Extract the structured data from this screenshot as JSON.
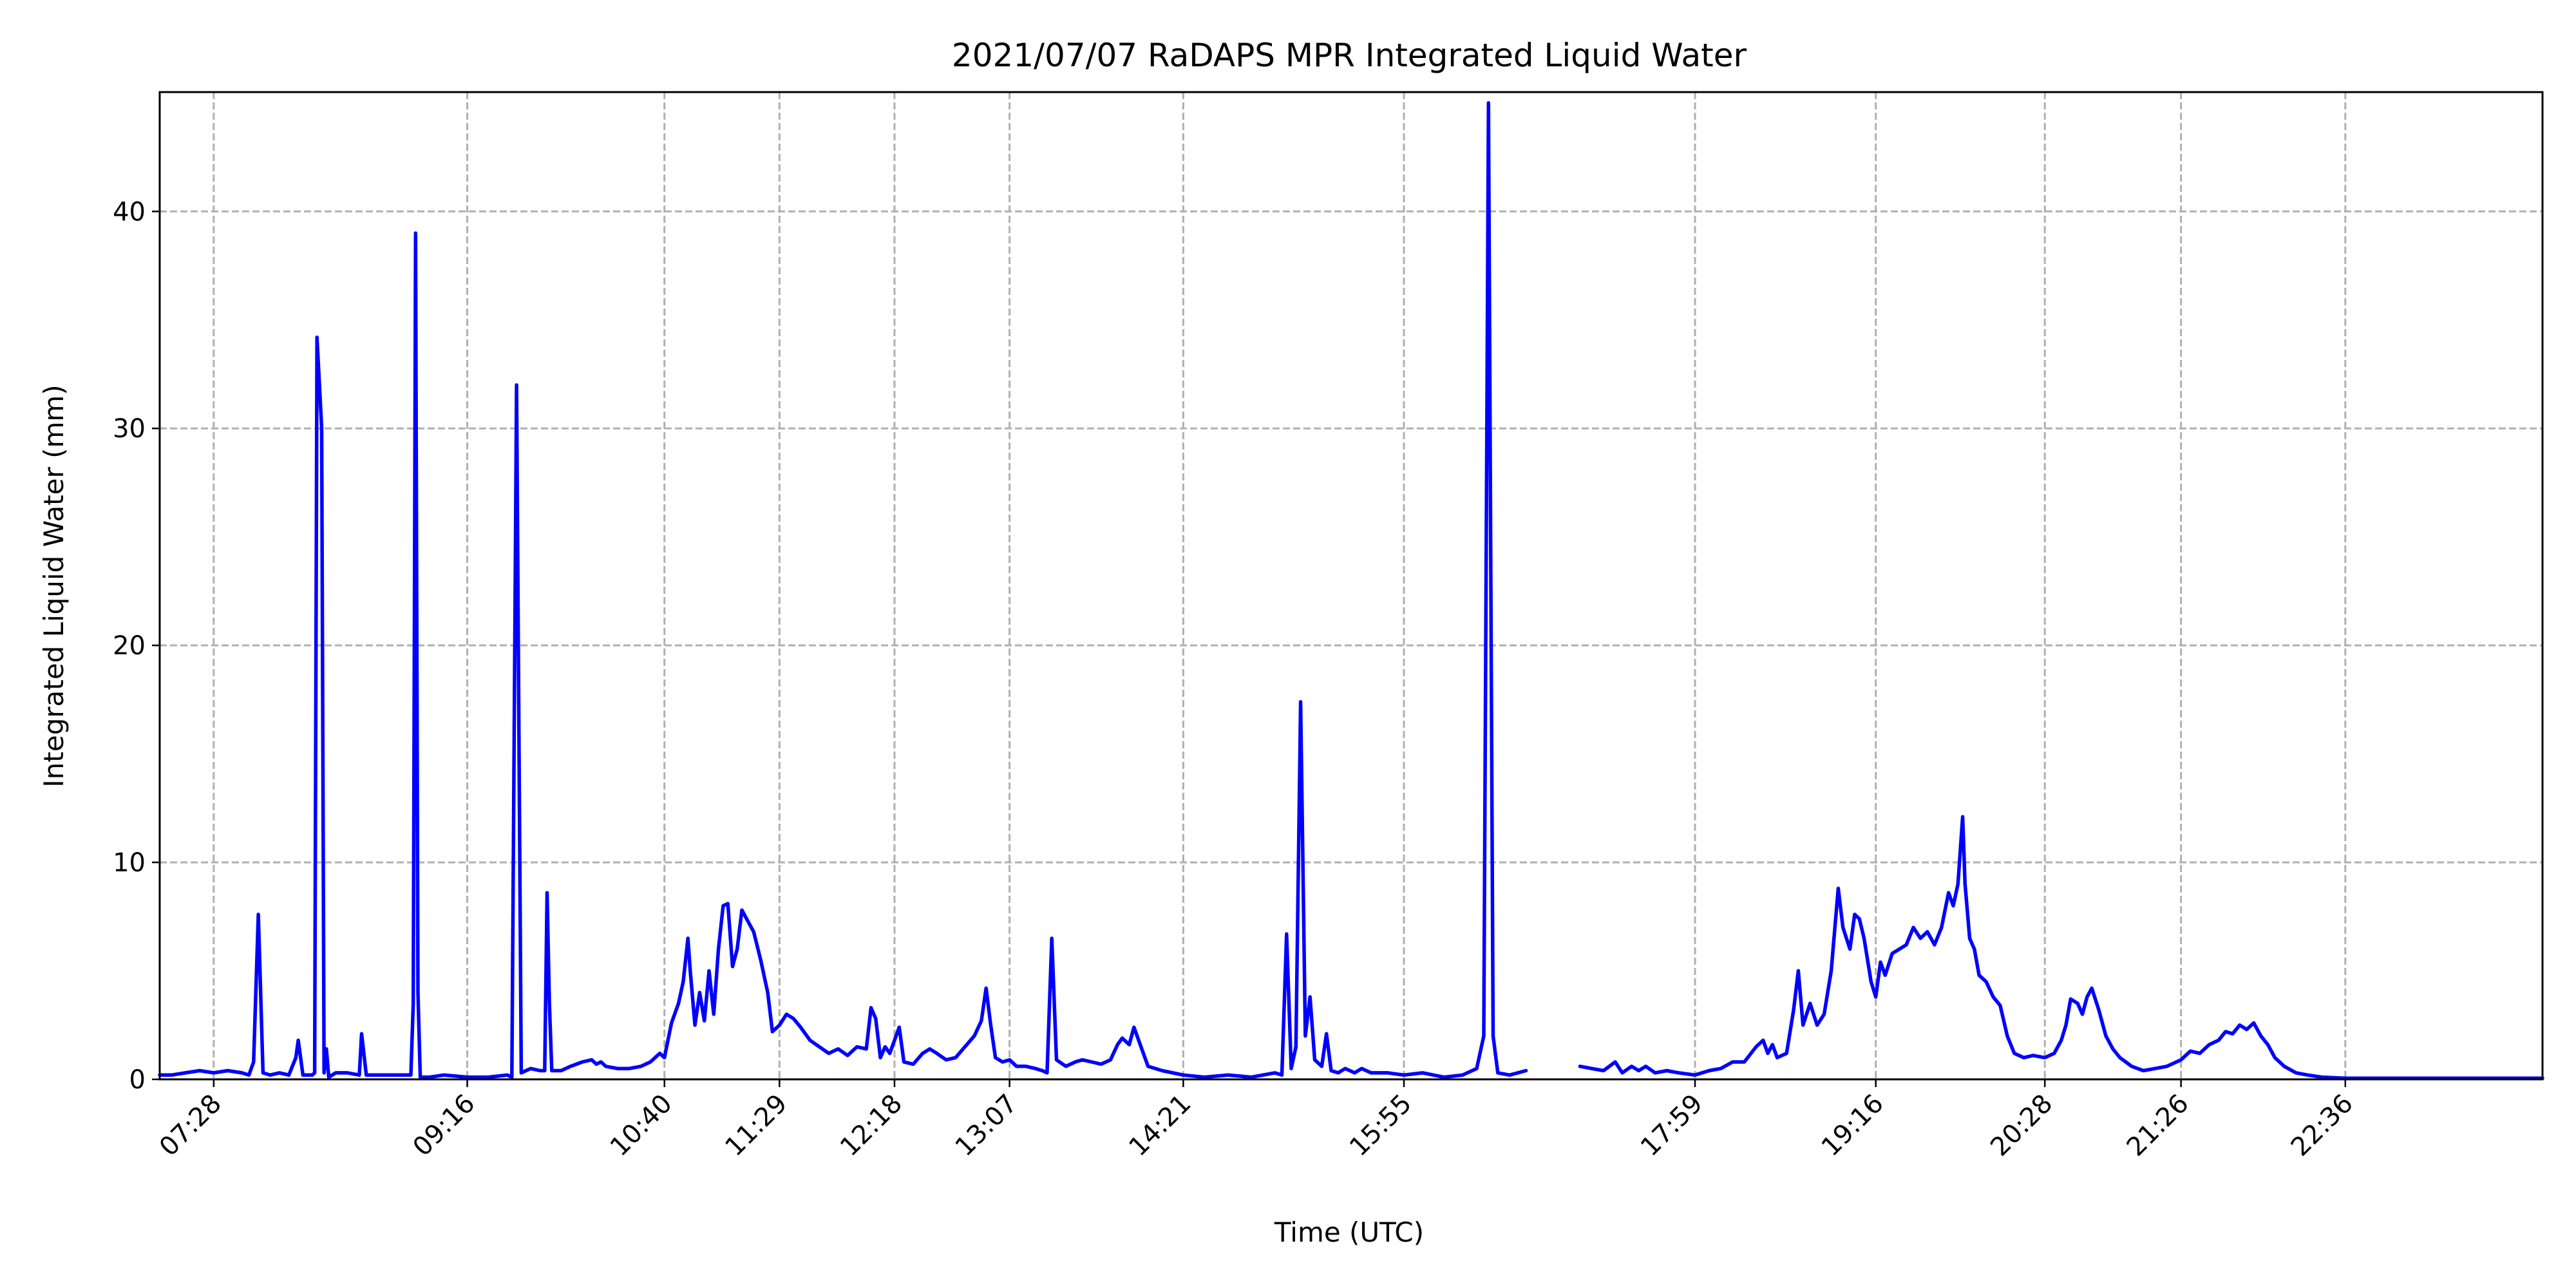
{
  "chart_data": {
    "type": "line",
    "title": "2021/07/07 RaDAPS MPR Integrated Liquid Water",
    "xlabel": "Time (UTC)",
    "ylabel": "Integrated Liquid Water (mm)",
    "x_range": [
      "07:05",
      "24:00"
    ],
    "ylim": [
      0,
      45.5
    ],
    "grid": true,
    "line_color": "#0000ff",
    "x_ticks": [
      "07:28",
      "09:16",
      "10:40",
      "11:29",
      "12:18",
      "13:07",
      "14:21",
      "15:55",
      "17:59",
      "19:16",
      "20:28",
      "21:26",
      "22:36"
    ],
    "y_ticks": [
      0,
      10,
      20,
      30,
      40
    ],
    "series": [
      {
        "segments": [
          [
            [
              "07:05",
              0.2
            ],
            [
              "07:10",
              0.2
            ],
            [
              "07:16",
              0.3
            ],
            [
              "07:22",
              0.4
            ],
            [
              "07:28",
              0.3
            ],
            [
              "07:34",
              0.4
            ],
            [
              "07:40",
              0.3
            ],
            [
              "07:43",
              0.2
            ],
            [
              "07:45",
              0.8
            ],
            [
              "07:47",
              7.6
            ],
            [
              "07:49",
              0.3
            ],
            [
              "07:52",
              0.2
            ],
            [
              "07:56",
              0.3
            ],
            [
              "08:00",
              0.2
            ],
            [
              "08:03",
              1.0
            ],
            [
              "08:04",
              1.8
            ],
            [
              "08:06",
              0.2
            ],
            [
              "08:10",
              0.2
            ],
            [
              "08:11",
              0.3
            ],
            [
              "08:12",
              34.2
            ],
            [
              "08:14",
              30.0
            ],
            [
              "08:15",
              0.3
            ],
            [
              "08:16",
              1.4
            ],
            [
              "08:17",
              0.1
            ],
            [
              "08:20",
              0.3
            ],
            [
              "08:25",
              0.3
            ],
            [
              "08:30",
              0.2
            ],
            [
              "08:31",
              2.1
            ],
            [
              "08:33",
              0.2
            ],
            [
              "08:38",
              0.2
            ],
            [
              "08:45",
              0.2
            ],
            [
              "08:50",
              0.2
            ],
            [
              "08:52",
              0.2
            ],
            [
              "08:53",
              3.5
            ],
            [
              "08:54",
              39.0
            ],
            [
              "08:55",
              4.0
            ],
            [
              "08:56",
              0.1
            ],
            [
              "09:00",
              0.1
            ],
            [
              "09:06",
              0.2
            ],
            [
              "09:16",
              0.1
            ],
            [
              "09:25",
              0.1
            ],
            [
              "09:33",
              0.2
            ],
            [
              "09:35",
              0.1
            ],
            [
              "09:37",
              32.0
            ],
            [
              "09:39",
              0.3
            ],
            [
              "09:43",
              0.5
            ],
            [
              "09:47",
              0.4
            ],
            [
              "09:49",
              0.4
            ],
            [
              "09:50",
              8.6
            ],
            [
              "09:51",
              3.5
            ],
            [
              "09:52",
              0.4
            ],
            [
              "09:56",
              0.4
            ],
            [
              "10:00",
              0.6
            ],
            [
              "10:05",
              0.8
            ],
            [
              "10:09",
              0.9
            ],
            [
              "10:11",
              0.7
            ],
            [
              "10:13",
              0.8
            ],
            [
              "10:15",
              0.6
            ],
            [
              "10:20",
              0.5
            ],
            [
              "10:25",
              0.5
            ],
            [
              "10:30",
              0.6
            ],
            [
              "10:34",
              0.8
            ],
            [
              "10:38",
              1.2
            ],
            [
              "10:40",
              1.0
            ],
            [
              "10:43",
              2.6
            ],
            [
              "10:46",
              3.5
            ],
            [
              "10:48",
              4.5
            ],
            [
              "10:50",
              6.5
            ],
            [
              "10:51",
              5.0
            ],
            [
              "10:53",
              2.5
            ],
            [
              "10:55",
              4.0
            ],
            [
              "10:57",
              2.7
            ],
            [
              "10:59",
              5.0
            ],
            [
              "11:01",
              3.0
            ],
            [
              "11:03",
              6.0
            ],
            [
              "11:05",
              8.0
            ],
            [
              "11:07",
              8.1
            ],
            [
              "11:09",
              5.2
            ],
            [
              "11:11",
              6.0
            ],
            [
              "11:13",
              7.8
            ],
            [
              "11:15",
              7.4
            ],
            [
              "11:18",
              6.8
            ],
            [
              "11:21",
              5.5
            ],
            [
              "11:24",
              4.0
            ],
            [
              "11:26",
              2.2
            ],
            [
              "11:29",
              2.5
            ],
            [
              "11:32",
              3.0
            ],
            [
              "11:35",
              2.8
            ],
            [
              "11:38",
              2.4
            ],
            [
              "11:42",
              1.8
            ],
            [
              "11:46",
              1.5
            ],
            [
              "11:50",
              1.2
            ],
            [
              "11:54",
              1.4
            ],
            [
              "11:58",
              1.1
            ],
            [
              "12:02",
              1.5
            ],
            [
              "12:06",
              1.4
            ],
            [
              "12:08",
              3.3
            ],
            [
              "12:10",
              2.8
            ],
            [
              "12:12",
              1.0
            ],
            [
              "12:14",
              1.5
            ],
            [
              "12:16",
              1.2
            ],
            [
              "12:18",
              1.8
            ],
            [
              "12:20",
              2.4
            ],
            [
              "12:22",
              0.8
            ],
            [
              "12:26",
              0.7
            ],
            [
              "12:30",
              1.2
            ],
            [
              "12:33",
              1.4
            ],
            [
              "12:36",
              1.2
            ],
            [
              "12:40",
              0.9
            ],
            [
              "12:44",
              1.0
            ],
            [
              "12:48",
              1.5
            ],
            [
              "12:52",
              2.0
            ],
            [
              "12:55",
              2.7
            ],
            [
              "12:57",
              4.2
            ],
            [
              "12:59",
              2.5
            ],
            [
              "13:01",
              1.0
            ],
            [
              "13:04",
              0.8
            ],
            [
              "13:07",
              0.9
            ],
            [
              "13:10",
              0.6
            ],
            [
              "13:14",
              0.6
            ],
            [
              "13:18",
              0.5
            ],
            [
              "13:21",
              0.4
            ],
            [
              "13:23",
              0.3
            ],
            [
              "13:25",
              6.5
            ],
            [
              "13:27",
              0.9
            ],
            [
              "13:31",
              0.6
            ],
            [
              "13:35",
              0.8
            ],
            [
              "13:38",
              0.9
            ],
            [
              "13:42",
              0.8
            ],
            [
              "13:46",
              0.7
            ],
            [
              "13:50",
              0.9
            ],
            [
              "13:53",
              1.6
            ],
            [
              "13:55",
              1.9
            ],
            [
              "13:58",
              1.6
            ],
            [
              "14:00",
              2.4
            ],
            [
              "14:02",
              1.8
            ],
            [
              "14:06",
              0.6
            ],
            [
              "14:12",
              0.4
            ],
            [
              "14:21",
              0.2
            ],
            [
              "14:30",
              0.1
            ],
            [
              "14:40",
              0.2
            ],
            [
              "14:50",
              0.1
            ],
            [
              "15:00",
              0.3
            ],
            [
              "15:03",
              0.2
            ],
            [
              "15:05",
              6.7
            ],
            [
              "15:07",
              0.5
            ],
            [
              "15:09",
              1.5
            ],
            [
              "15:11",
              17.4
            ],
            [
              "15:13",
              2.0
            ],
            [
              "15:15",
              3.8
            ],
            [
              "15:17",
              0.9
            ],
            [
              "15:20",
              0.6
            ],
            [
              "15:22",
              2.1
            ],
            [
              "15:24",
              0.4
            ],
            [
              "15:27",
              0.3
            ],
            [
              "15:30",
              0.5
            ],
            [
              "15:34",
              0.3
            ],
            [
              "15:37",
              0.5
            ],
            [
              "15:41",
              0.3
            ],
            [
              "15:48",
              0.3
            ],
            [
              "15:55",
              0.2
            ],
            [
              "16:03",
              0.3
            ],
            [
              "16:12",
              0.1
            ],
            [
              "16:20",
              0.2
            ],
            [
              "16:26",
              0.5
            ],
            [
              "16:29",
              2.0
            ],
            [
              "16:31",
              45.0
            ],
            [
              "16:33",
              2.0
            ],
            [
              "16:35",
              0.3
            ],
            [
              "16:40",
              0.2
            ],
            [
              "16:47",
              0.4
            ]
          ],
          [
            [
              "17:10",
              0.6
            ],
            [
              "17:15",
              0.5
            ],
            [
              "17:20",
              0.4
            ],
            [
              "17:25",
              0.8
            ],
            [
              "17:28",
              0.3
            ],
            [
              "17:32",
              0.6
            ],
            [
              "17:35",
              0.4
            ],
            [
              "17:38",
              0.6
            ],
            [
              "17:42",
              0.3
            ],
            [
              "17:47",
              0.4
            ],
            [
              "17:52",
              0.3
            ],
            [
              "17:59",
              0.2
            ],
            [
              "18:05",
              0.4
            ],
            [
              "18:10",
              0.5
            ],
            [
              "18:15",
              0.8
            ],
            [
              "18:20",
              0.8
            ],
            [
              "18:25",
              1.5
            ],
            [
              "18:28",
              1.8
            ],
            [
              "18:30",
              1.2
            ],
            [
              "18:32",
              1.6
            ],
            [
              "18:34",
              1.0
            ],
            [
              "18:38",
              1.2
            ],
            [
              "18:41",
              3.2
            ],
            [
              "18:43",
              5.0
            ],
            [
              "18:45",
              2.5
            ],
            [
              "18:48",
              3.5
            ],
            [
              "18:51",
              2.5
            ],
            [
              "18:54",
              3.0
            ],
            [
              "18:57",
              5.0
            ],
            [
              "19:00",
              8.8
            ],
            [
              "19:02",
              7.0
            ],
            [
              "19:05",
              6.0
            ],
            [
              "19:07",
              7.6
            ],
            [
              "19:09",
              7.4
            ],
            [
              "19:11",
              6.5
            ],
            [
              "19:14",
              4.5
            ],
            [
              "19:16",
              3.8
            ],
            [
              "19:18",
              5.4
            ],
            [
              "19:20",
              4.8
            ],
            [
              "19:23",
              5.8
            ],
            [
              "19:26",
              6.0
            ],
            [
              "19:29",
              6.2
            ],
            [
              "19:32",
              7.0
            ],
            [
              "19:35",
              6.5
            ],
            [
              "19:38",
              6.8
            ],
            [
              "19:41",
              6.2
            ],
            [
              "19:44",
              7.0
            ],
            [
              "19:47",
              8.6
            ],
            [
              "19:49",
              8.0
            ],
            [
              "19:51",
              9.0
            ],
            [
              "19:53",
              12.1
            ],
            [
              "19:54",
              9.0
            ],
            [
              "19:56",
              6.5
            ],
            [
              "19:58",
              6.0
            ],
            [
              "20:00",
              4.8
            ],
            [
              "20:03",
              4.5
            ],
            [
              "20:06",
              3.8
            ],
            [
              "20:09",
              3.4
            ],
            [
              "20:12",
              2.0
            ],
            [
              "20:15",
              1.2
            ],
            [
              "20:19",
              1.0
            ],
            [
              "20:23",
              1.1
            ],
            [
              "20:28",
              1.0
            ],
            [
              "20:32",
              1.2
            ],
            [
              "20:35",
              1.8
            ],
            [
              "20:37",
              2.5
            ],
            [
              "20:39",
              3.7
            ],
            [
              "20:42",
              3.5
            ],
            [
              "20:44",
              3.0
            ],
            [
              "20:46",
              3.8
            ],
            [
              "20:48",
              4.2
            ],
            [
              "20:51",
              3.2
            ],
            [
              "20:54",
              2.0
            ],
            [
              "20:57",
              1.4
            ],
            [
              "21:00",
              1.0
            ],
            [
              "21:05",
              0.6
            ],
            [
              "21:10",
              0.4
            ],
            [
              "21:15",
              0.5
            ],
            [
              "21:20",
              0.6
            ],
            [
              "21:26",
              0.9
            ],
            [
              "21:30",
              1.3
            ],
            [
              "21:34",
              1.2
            ],
            [
              "21:38",
              1.6
            ],
            [
              "21:42",
              1.8
            ],
            [
              "21:45",
              2.2
            ],
            [
              "21:48",
              2.1
            ],
            [
              "21:51",
              2.5
            ],
            [
              "21:54",
              2.3
            ],
            [
              "21:57",
              2.6
            ],
            [
              "22:00",
              2.0
            ],
            [
              "22:03",
              1.6
            ],
            [
              "22:06",
              1.0
            ],
            [
              "22:10",
              0.6
            ],
            [
              "22:15",
              0.3
            ],
            [
              "22:20",
              0.2
            ],
            [
              "22:26",
              0.1
            ],
            [
              "22:36",
              0.05
            ],
            [
              "22:50",
              0.05
            ],
            [
              "23:05",
              0.05
            ],
            [
              "23:20",
              0.05
            ],
            [
              "23:35",
              0.05
            ],
            [
              "23:50",
              0.05
            ],
            [
              "24:00",
              0.05
            ]
          ]
        ]
      }
    ]
  }
}
